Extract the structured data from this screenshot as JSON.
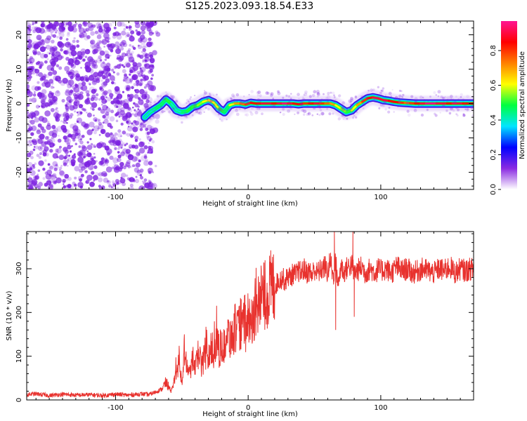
{
  "title": "S125.2023.093.18.54.E33",
  "chart_data": [
    {
      "type": "heatmap",
      "panel": "spectrogram",
      "xlabel": "Height of straight line (km)",
      "ylabel": "Frequency (Hz)",
      "xlim": [
        -167,
        170
      ],
      "ylim": [
        -25,
        24
      ],
      "xticks": [
        -100,
        0,
        100
      ],
      "xtick_labels": [
        "-100",
        "0",
        "100"
      ],
      "yticks": [
        -20,
        -10,
        0,
        10,
        20
      ],
      "ytick_labels": [
        "-20",
        "-10",
        "0",
        "10",
        "20"
      ],
      "noise_region_x": [
        -167,
        -77
      ],
      "noise_color": "#7b1fe0",
      "signal_ridge": {
        "x": [
          -78,
          -74,
          -70,
          -66,
          -62,
          -58,
          -54,
          -50,
          -46,
          -42,
          -38,
          -34,
          -30,
          -26,
          -22,
          -18,
          -14,
          -10,
          -6,
          -2,
          2,
          6,
          10,
          14,
          18,
          22,
          26,
          30,
          34,
          38,
          42,
          46,
          50,
          54,
          58,
          62,
          66,
          70,
          74,
          78,
          82,
          86,
          90,
          94,
          98,
          102,
          106,
          110,
          114,
          118,
          122,
          126,
          130,
          134,
          138,
          142,
          146,
          150,
          154,
          158,
          162,
          166,
          170
        ],
        "y": [
          -4,
          -2.5,
          -1.5,
          -0.5,
          1.2,
          0,
          -2,
          -2.5,
          -2.2,
          -1,
          -0.5,
          0.5,
          1,
          0.3,
          -1.5,
          -2.5,
          -0.5,
          0,
          0,
          -0.3,
          0.2,
          0,
          0,
          0,
          0,
          0,
          0,
          0,
          0,
          -0.2,
          0,
          0,
          0,
          0,
          0,
          0,
          -0.5,
          -1.5,
          -2.5,
          -2,
          -0.5,
          0.5,
          1.5,
          1.8,
          1.5,
          1,
          0.8,
          0.5,
          0.3,
          0.2,
          0.1,
          0,
          0,
          0,
          0,
          0,
          0,
          0,
          0,
          0,
          0,
          0,
          0
        ],
        "amplitude": [
          0.35,
          0.4,
          0.45,
          0.45,
          0.5,
          0.4,
          0.4,
          0.45,
          0.5,
          0.5,
          0.55,
          0.6,
          0.65,
          0.6,
          0.5,
          0.45,
          0.6,
          0.7,
          0.75,
          0.8,
          0.85,
          0.85,
          0.9,
          0.9,
          0.85,
          0.9,
          0.95,
          0.9,
          0.85,
          0.85,
          0.8,
          0.85,
          0.9,
          0.8,
          0.75,
          0.7,
          0.6,
          0.55,
          0.5,
          0.6,
          0.7,
          0.8,
          0.85,
          0.9,
          0.9,
          0.9,
          0.85,
          0.85,
          0.8,
          0.75,
          0.8,
          0.85,
          0.9,
          0.95,
          0.95,
          0.9,
          0.9,
          0.85,
          0.9,
          0.9,
          0.85,
          0.85,
          0.8
        ]
      }
    },
    {
      "type": "colorbar",
      "label": "Normalized spectral amplitude",
      "lim": [
        0,
        0.97
      ],
      "ticks": [
        0.0,
        0.2,
        0.4,
        0.6,
        0.8
      ],
      "tick_labels": [
        "0.0",
        "0.2",
        "0.4",
        "0.6",
        "0.8"
      ],
      "colors": [
        "#ffffff",
        "#8a2be2",
        "#0000ff",
        "#00e5ff",
        "#00ff40",
        "#ffff00",
        "#ff8000",
        "#ff0000",
        "#ff1493"
      ]
    },
    {
      "type": "line",
      "panel": "snr",
      "xlabel": "Height of straight line (km)",
      "ylabel": "SNR (10 * v/v)",
      "xlim": [
        -167,
        170
      ],
      "ylim": [
        0,
        385
      ],
      "xticks": [
        -100,
        0,
        100
      ],
      "xtick_labels": [
        "-100",
        "0",
        "100"
      ],
      "yticks": [
        0,
        100,
        200,
        300
      ],
      "ytick_labels": [
        "0",
        "100",
        "200",
        "300"
      ],
      "color": "#e8322e",
      "series": [
        {
          "x": [
            -167,
            -160,
            -150,
            -140,
            -130,
            -120,
            -110,
            -100,
            -90,
            -80,
            -75,
            -70,
            -65,
            -62,
            -60,
            -58,
            -55,
            -52,
            -50,
            -48,
            -46,
            -44,
            -42,
            -40,
            -38,
            -36,
            -34,
            -32,
            -30,
            -28,
            -26,
            -24,
            -22,
            -20,
            -18,
            -16,
            -14,
            -12,
            -10,
            -8,
            -6,
            -4,
            -2,
            0,
            2,
            4,
            6,
            8,
            10,
            12,
            14,
            16,
            18,
            20,
            22,
            24,
            26,
            28,
            30,
            32,
            34,
            36,
            38,
            40,
            42,
            44,
            46,
            48,
            50,
            52,
            54,
            56,
            58,
            60,
            62,
            64,
            66,
            68,
            70,
            72,
            74,
            76,
            78,
            80,
            82,
            84,
            86,
            88,
            90,
            92,
            94,
            96,
            98,
            100,
            104,
            108,
            112,
            116,
            120,
            124,
            128,
            132,
            136,
            140,
            144,
            148,
            152,
            156,
            160,
            164,
            168,
            170
          ],
          "y": [
            12,
            14,
            10,
            13,
            11,
            12,
            10,
            13,
            11,
            14,
            12,
            18,
            25,
            40,
            30,
            20,
            55,
            90,
            40,
            120,
            80,
            60,
            100,
            70,
            110,
            90,
            85,
            130,
            95,
            115,
            100,
            150,
            110,
            130,
            120,
            170,
            140,
            150,
            165,
            155,
            175,
            170,
            185,
            180,
            195,
            200,
            210,
            220,
            230,
            235,
            245,
            250,
            260,
            255,
            270,
            275,
            280,
            270,
            285,
            280,
            290,
            285,
            295,
            290,
            300,
            290,
            295,
            285,
            300,
            290,
            295,
            300,
            305,
            290,
            320,
            280,
            315,
            260,
            310,
            290,
            300,
            305,
            310,
            290,
            295,
            300,
            305,
            290,
            295,
            300,
            295,
            290,
            300,
            295,
            300,
            290,
            305,
            295,
            300,
            290,
            295,
            300,
            295,
            290,
            300,
            295,
            305,
            290,
            300,
            295,
            300,
            298
          ],
          "spikes": [
            {
              "x": 65,
              "y": 388
            },
            {
              "x": 66,
              "y": 160
            },
            {
              "x": 79,
              "y": 392
            },
            {
              "x": 80,
              "y": 190
            }
          ]
        }
      ]
    }
  ]
}
